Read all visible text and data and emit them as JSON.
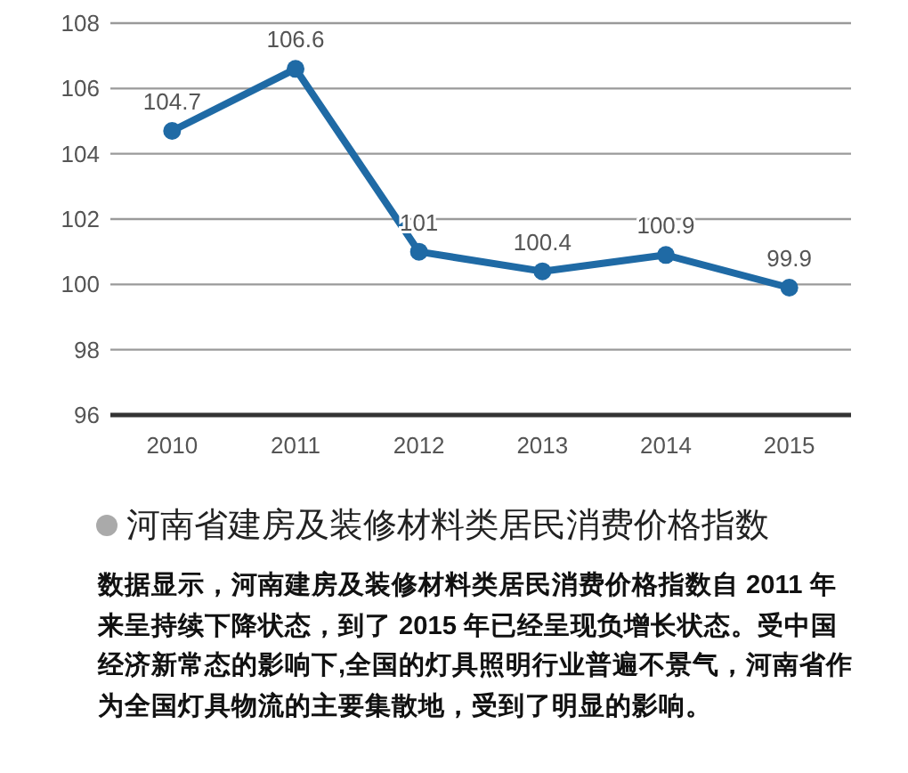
{
  "chart_data": {
    "type": "line",
    "title": "河南省建房及装修材料类居民消费价格指数",
    "categories": [
      "2010",
      "2011",
      "2012",
      "2013",
      "2014",
      "2015"
    ],
    "series": [
      {
        "color": "#1f6aa5",
        "values": [
          104.7,
          106.6,
          101,
          100.4,
          100.9,
          99.9
        ]
      }
    ],
    "ylim": [
      96,
      108
    ],
    "yticks": [
      96,
      98,
      100,
      102,
      104,
      106,
      108
    ],
    "grid": "y",
    "marker": "circle",
    "line_style": "solid",
    "data_labels": true,
    "annotations": [
      "数据显示，河南建房及装修材料类居民消费价格指数自 2011 年来呈持续下降状态，到了 2015 年已经呈现负增长状态。受中国经济新常态的影响下,全国的灯具照明行业普遍不景气，河南省作为全国灯具物流的主要集散地，受到了明显的影响。"
    ]
  }
}
